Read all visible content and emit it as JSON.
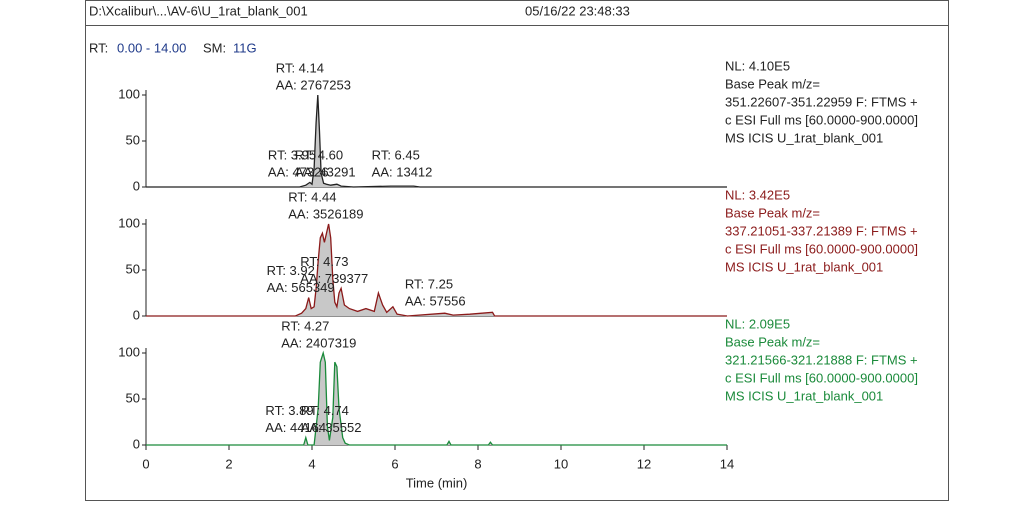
{
  "header": {
    "file": "D:\\Xcalibur\\...\\AV-6\\U_1rat_blank_001",
    "date": "05/16/22 23:48:33"
  },
  "range_line": {
    "rt_label": "RT:",
    "rt": "0.00 - 14.00",
    "sm_label": "SM:",
    "sm": "11G"
  },
  "chart_data": [
    {
      "type": "line",
      "color": "#222222",
      "x": [
        0,
        3.7,
        3.85,
        3.95,
        4.0,
        4.05,
        4.1,
        4.14,
        4.18,
        4.22,
        4.28,
        4.35,
        4.45,
        4.6,
        4.7,
        5.0,
        5.9,
        6.45,
        6.6,
        14
      ],
      "values": [
        0,
        0,
        2,
        5,
        3,
        20,
        70,
        100,
        60,
        15,
        4,
        3,
        2,
        3,
        1,
        0,
        1,
        1,
        0,
        0
      ],
      "xlim": [
        0,
        14
      ],
      "ylim": [
        0,
        100
      ],
      "yticks": [
        0,
        50,
        100
      ],
      "annotations": [
        {
          "x": 4.14,
          "rt": "RT: 4.14",
          "aa": "AA: 2767253"
        },
        {
          "x": 3.95,
          "rt": "RT: 3.95",
          "aa": "AA: 47326"
        },
        {
          "x": 4.6,
          "rt": "RT: 4.60",
          "aa": "AA: 43291"
        },
        {
          "x": 6.45,
          "rt": "RT: 6.45",
          "aa": "AA: 13412"
        }
      ],
      "info": [
        "NL: 4.10E5",
        "Base Peak m/z=",
        "351.22607-351.22959 F: FTMS +",
        "c ESI Full ms [60.0000-900.0000]",
        "MS  ICIS U_1rat_blank_001"
      ]
    },
    {
      "type": "line",
      "color": "#8b1a1a",
      "x": [
        0,
        3.6,
        3.75,
        3.85,
        3.92,
        3.98,
        4.05,
        4.1,
        4.15,
        4.2,
        4.25,
        4.3,
        4.35,
        4.4,
        4.45,
        4.5,
        4.55,
        4.6,
        4.65,
        4.7,
        4.78,
        4.9,
        5.1,
        5.3,
        5.5,
        5.6,
        5.7,
        5.8,
        5.95,
        6.05,
        6.3,
        7.2,
        7.4,
        7.8,
        8.35,
        8.4,
        14
      ],
      "values": [
        0,
        0,
        3,
        8,
        20,
        8,
        10,
        30,
        60,
        85,
        90,
        80,
        90,
        100,
        85,
        40,
        15,
        10,
        25,
        30,
        12,
        8,
        5,
        8,
        5,
        25,
        12,
        4,
        10,
        2,
        0,
        3,
        1,
        2,
        4,
        0,
        0
      ],
      "xlim": [
        0,
        14
      ],
      "ylim": [
        0,
        100
      ],
      "yticks": [
        0,
        50,
        100
      ],
      "annotations": [
        {
          "x": 4.44,
          "rt": "RT: 4.44",
          "aa": "AA: 3526189"
        },
        {
          "x": 3.92,
          "rt": "RT: 3.92",
          "aa": "AA: 565349"
        },
        {
          "x": 4.73,
          "rt": "RT: 4.73",
          "aa": "AA: 739377"
        },
        {
          "x": 7.25,
          "rt": "RT: 7.25",
          "aa": "AA: 57556"
        }
      ],
      "info": [
        "NL: 3.42E5",
        "Base Peak m/z=",
        "337.21051-337.21389 F: FTMS +",
        "c ESI Full ms [60.0000-900.0000]",
        "MS  ICIS U_1rat_blank_001"
      ]
    },
    {
      "type": "line",
      "color": "#1a8a3a",
      "x": [
        0,
        3.8,
        3.85,
        3.9,
        4.05,
        4.15,
        4.2,
        4.27,
        4.32,
        4.37,
        4.42,
        4.5,
        4.55,
        4.6,
        4.65,
        4.74,
        4.8,
        4.9,
        7.25,
        7.3,
        7.35,
        8.25,
        8.3,
        8.35,
        14
      ],
      "values": [
        0,
        0,
        8,
        0,
        0,
        40,
        90,
        100,
        90,
        20,
        5,
        30,
        90,
        85,
        40,
        8,
        2,
        0,
        0,
        4,
        0,
        0,
        3,
        0,
        0
      ],
      "xlim": [
        0,
        14
      ],
      "ylim": [
        0,
        100
      ],
      "yticks": [
        0,
        50,
        100
      ],
      "xticks": [
        0,
        2,
        4,
        6,
        8,
        10,
        12,
        14
      ],
      "xlabel": "Time (min)",
      "annotations": [
        {
          "x": 4.27,
          "rt": "RT: 4.27",
          "aa": "AA: 2407319"
        },
        {
          "x": 3.89,
          "rt": "RT: 3.89",
          "aa": "AA: 44164"
        },
        {
          "x": 4.74,
          "rt": "RT: 4.74",
          "aa": "AA: 35552"
        }
      ],
      "info": [
        "NL: 2.09E5",
        "Base Peak m/z=",
        "321.21566-321.21888 F: FTMS +",
        "c ESI Full ms [60.0000-900.0000]",
        "MS  ICIS U_1rat_blank_001"
      ]
    }
  ]
}
